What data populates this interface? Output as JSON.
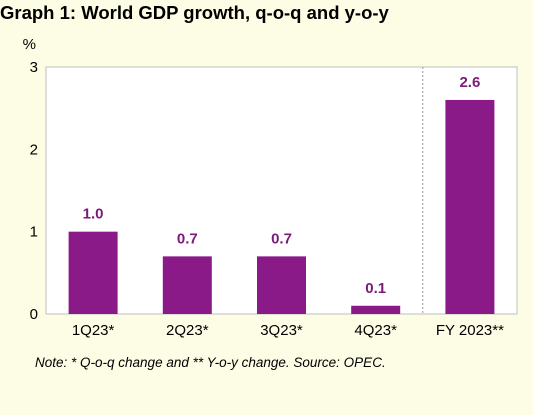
{
  "title": "Graph 1: World GDP growth, q-o-q and y-o-y",
  "note": "Note: * Q-o-q change and ** Y-o-y change. Source: OPEC.",
  "colors": {
    "background": "#fdfde6",
    "plot_background": "#ffffff",
    "bar": "#8b1a89",
    "label": "#7b1a7a",
    "border": "#bfbfbf",
    "separator": "#9a9a9a"
  },
  "chart_data": {
    "type": "bar",
    "ylabel": "%",
    "categories": [
      "1Q23*",
      "2Q23*",
      "3Q23*",
      "4Q23*",
      "FY 2023**"
    ],
    "values": [
      1.0,
      0.7,
      0.7,
      0.1,
      2.6
    ],
    "data_labels": [
      "1.0",
      "0.7",
      "0.7",
      "0.1",
      "2.6"
    ],
    "ylim": [
      0,
      3
    ],
    "yticks": [
      "0",
      "1",
      "2",
      "3"
    ],
    "grid": false,
    "legend": "none",
    "separator_before_category": "FY 2023**"
  }
}
